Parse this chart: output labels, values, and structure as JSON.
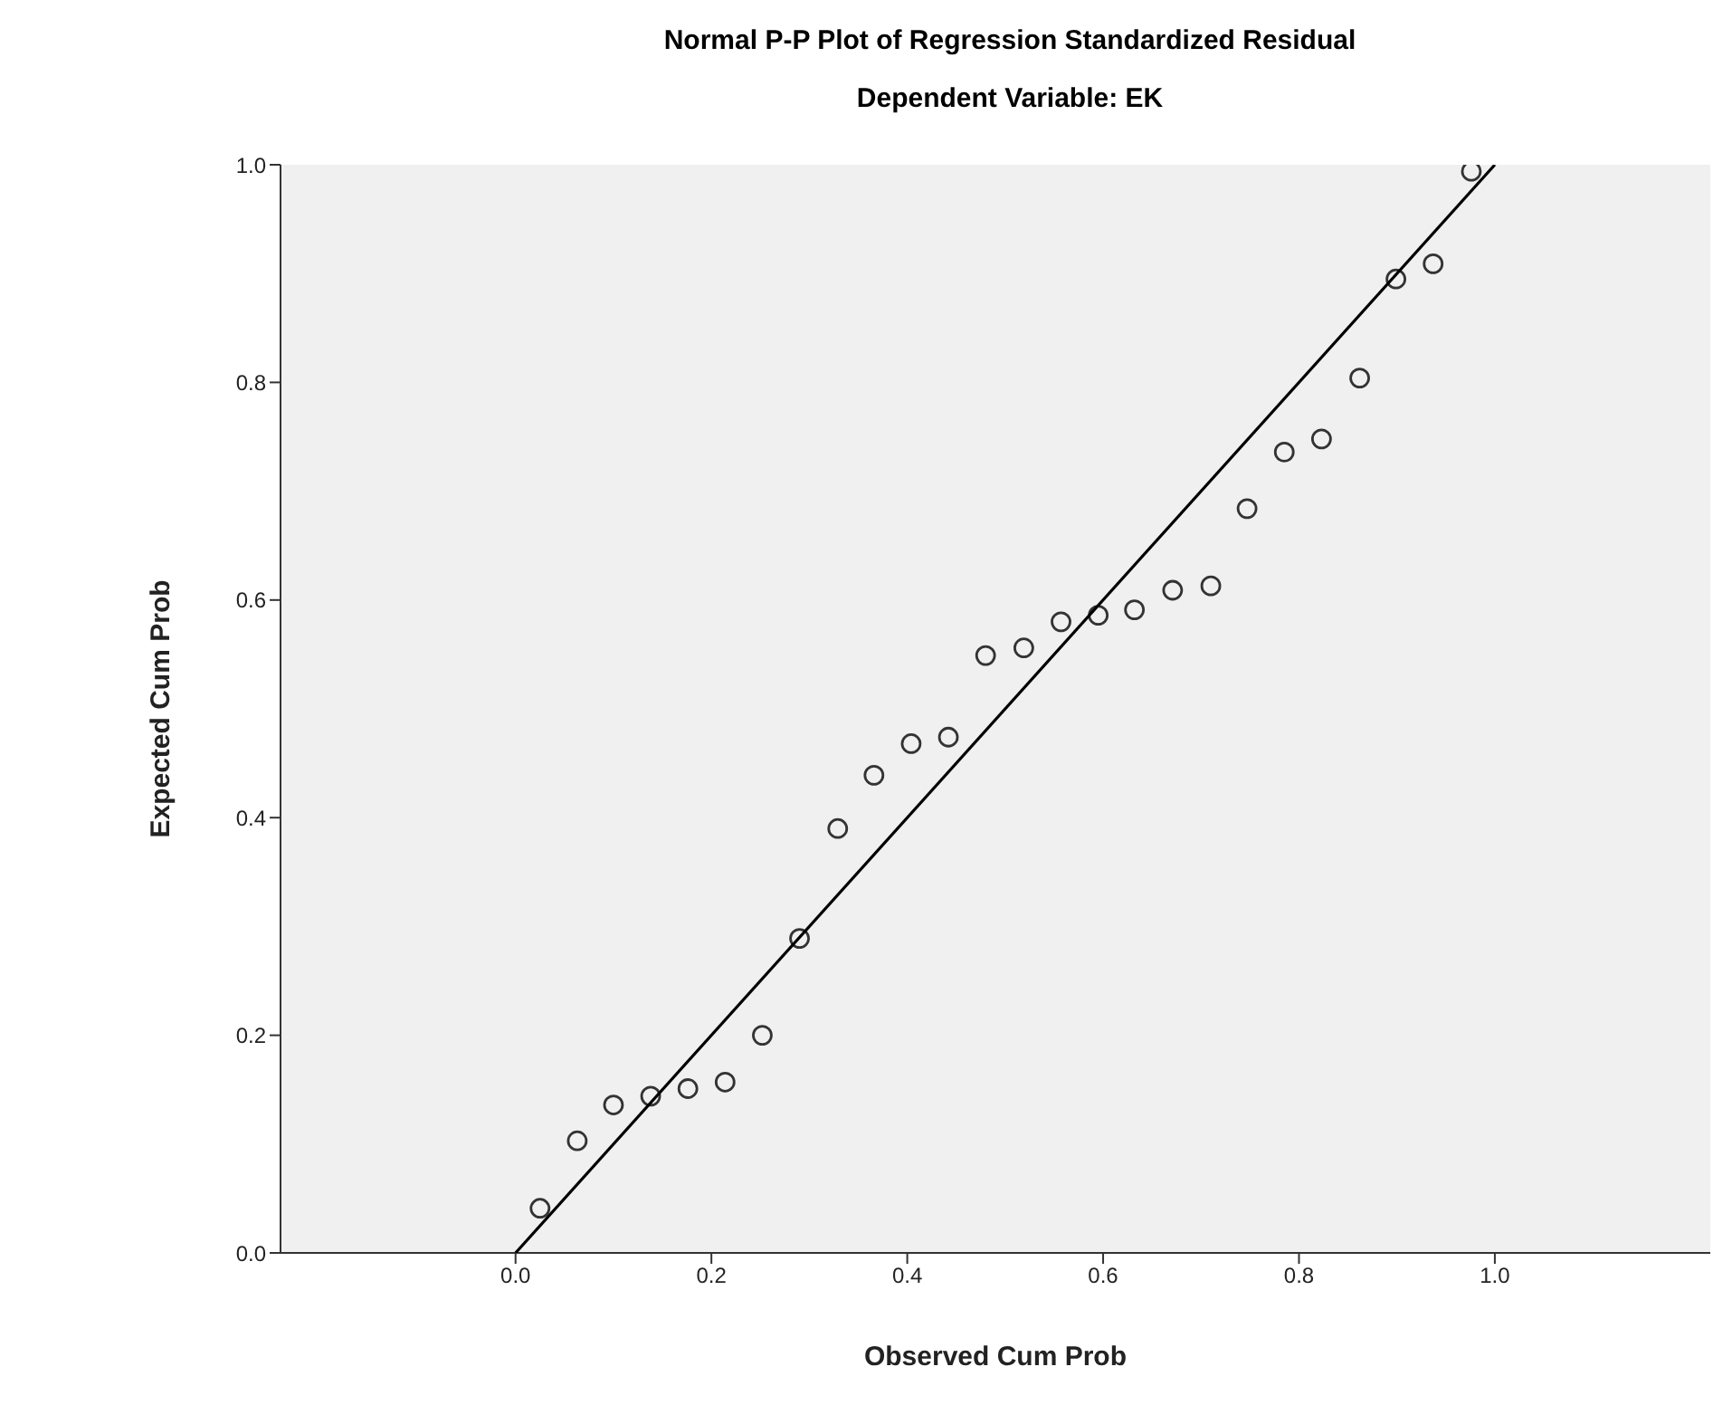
{
  "chart_data": {
    "type": "scatter",
    "title": "Normal P-P Plot of Regression Standardized Residual",
    "subtitle": "Dependent Variable: EK",
    "xlabel": "Observed Cum Prob",
    "ylabel": "Expected Cum Prob",
    "xlim": [
      -0.24,
      1.22
    ],
    "ylim": [
      0,
      1
    ],
    "xticks": [
      {
        "value": 0,
        "label": "0.0"
      },
      {
        "value": 0.2,
        "label": "0.2"
      },
      {
        "value": 0.4,
        "label": "0.4"
      },
      {
        "value": 0.6,
        "label": "0.6"
      },
      {
        "value": 0.8,
        "label": "0.8"
      },
      {
        "value": 1,
        "label": "1.0"
      }
    ],
    "yticks": [
      {
        "value": 0,
        "label": "0.0"
      },
      {
        "value": 0.2,
        "label": "0.2"
      },
      {
        "value": 0.4,
        "label": "0.4"
      },
      {
        "value": 0.6,
        "label": "0.6"
      },
      {
        "value": 0.8,
        "label": "0.8"
      },
      {
        "value": 1,
        "label": "1.0"
      }
    ],
    "grid": false,
    "legend": false,
    "marker": "circle",
    "series": [
      {
        "type": "scatter",
        "color": "#333333",
        "x": [
          0.025,
          0.063,
          0.1,
          0.138,
          0.176,
          0.214,
          0.252,
          0.29,
          0.329,
          0.366,
          0.404,
          0.442,
          0.48,
          0.519,
          0.557,
          0.595,
          0.632,
          0.671,
          0.71,
          0.747,
          0.785,
          0.823,
          0.862,
          0.899,
          0.937,
          0.976
        ],
        "values": [
          0.041,
          0.103,
          0.136,
          0.144,
          0.151,
          0.157,
          0.2,
          0.289,
          0.39,
          0.439,
          0.468,
          0.474,
          0.549,
          0.556,
          0.58,
          0.586,
          0.591,
          0.609,
          0.613,
          0.684,
          0.736,
          0.748,
          0.804,
          0.895,
          0.909,
          0.994
        ]
      },
      {
        "type": "line",
        "color": "#000000",
        "marker": "none",
        "x": [
          0,
          1
        ],
        "values": [
          0,
          1
        ]
      }
    ]
  }
}
